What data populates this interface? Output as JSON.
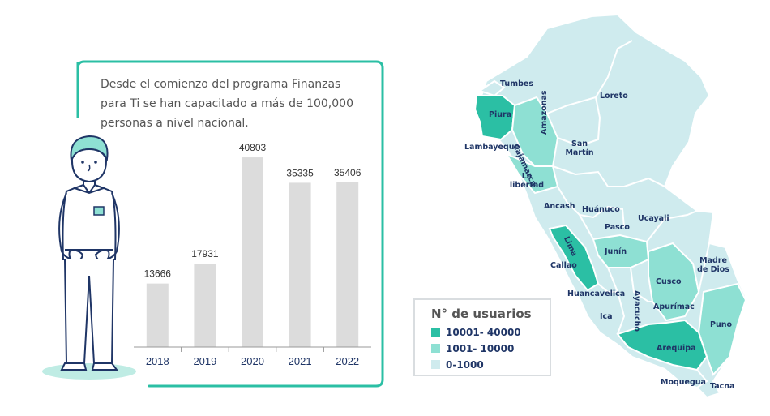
{
  "intro": {
    "text": "Desde el comienzo del programa Finanzas para Ti se han capacitado a más de 100,000 personas a nivel nacional."
  },
  "chart_data": {
    "type": "bar",
    "categories": [
      "2018",
      "2019",
      "2020",
      "2021",
      "2022"
    ],
    "values": [
      13666,
      17931,
      40803,
      35335,
      35406
    ],
    "value_labels": [
      "13666",
      "17931",
      "40803",
      "35335",
      "35406"
    ],
    "title": "",
    "xlabel": "",
    "ylabel": "",
    "ylim": [
      0,
      45000
    ],
    "grid": false,
    "bar_color": "#dcdcdc"
  },
  "map": {
    "legend": {
      "title": "N° de usuarios",
      "items": [
        {
          "label": "10001- 40000",
          "color": "#2bbfa4"
        },
        {
          "label": "1001- 10000",
          "color": "#8ee0d3"
        },
        {
          "label": "0-1000",
          "color": "#cfebee"
        }
      ]
    },
    "regions": [
      {
        "name": "Tumbes",
        "tier": 2
      },
      {
        "name": "Piura",
        "tier": 0
      },
      {
        "name": "Lambayeque",
        "tier": 0
      },
      {
        "name": "Cajamarca",
        "tier": 1
      },
      {
        "name": "Amazonas",
        "tier": 2
      },
      {
        "name": "Loreto",
        "tier": 2
      },
      {
        "name": "San Martín",
        "tier": 2
      },
      {
        "name": "La libertad",
        "tier": 1
      },
      {
        "name": "Ancash",
        "tier": 2
      },
      {
        "name": "Huánuco",
        "tier": 2
      },
      {
        "name": "Pasco",
        "tier": 2
      },
      {
        "name": "Ucayali",
        "tier": 2
      },
      {
        "name": "Lima",
        "tier": 0
      },
      {
        "name": "Callao",
        "tier": 2
      },
      {
        "name": "Junín",
        "tier": 1
      },
      {
        "name": "Madre de Dios",
        "tier": 2
      },
      {
        "name": "Cusco",
        "tier": 1
      },
      {
        "name": "Huancavelica",
        "tier": 2
      },
      {
        "name": "Ayacucho",
        "tier": 2
      },
      {
        "name": "Apurímac",
        "tier": 2
      },
      {
        "name": "Ica",
        "tier": 2
      },
      {
        "name": "Puno",
        "tier": 1
      },
      {
        "name": "Arequipa",
        "tier": 0
      },
      {
        "name": "Moquegua",
        "tier": 2
      },
      {
        "name": "Tacna",
        "tier": 2
      }
    ]
  }
}
